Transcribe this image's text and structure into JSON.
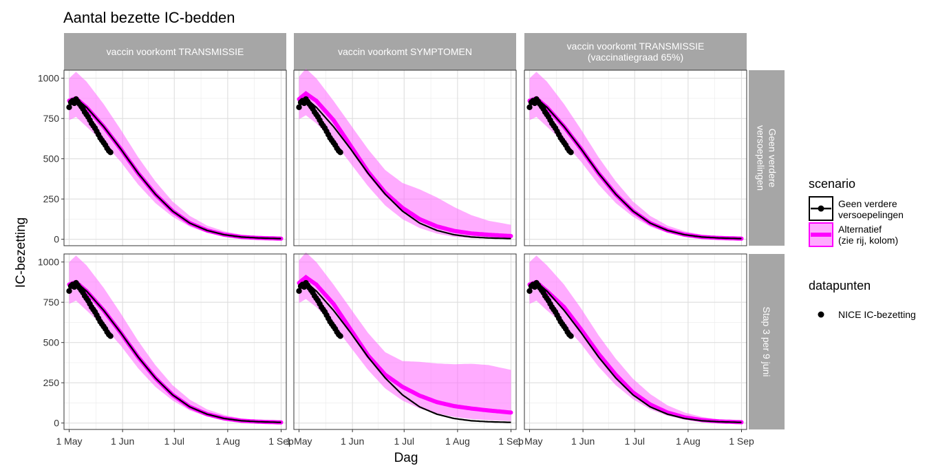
{
  "chart_data": {
    "type": "area",
    "title": "Aantal bezette IC-bedden",
    "xlabel": "Dag",
    "ylabel": "IC-bezetting",
    "x_ticks": [
      "1 May",
      "1 Jun",
      "1 Jul",
      "1 Aug",
      "1 Sep"
    ],
    "y_ticks": [
      "0",
      "250",
      "500",
      "750",
      "1000"
    ],
    "ylim": [
      -40,
      1050
    ],
    "xlim_days": [
      -3,
      126
    ],
    "grid": true,
    "columns": [
      "vaccin voorkomt TRANSMISSIE",
      "vaccin voorkomt SYMPTOMEN",
      "vaccin voorkomt TRANSMISSIE\n(vaccinatiegraad 65%)"
    ],
    "rows": [
      "Geen verdere versoepelingen",
      "Stap 3 per 9 juni"
    ],
    "x": [
      0,
      4,
      10,
      20,
      30,
      40,
      50,
      60,
      70,
      80,
      90,
      100,
      110,
      123
    ],
    "baseline": [
      860,
      875,
      820,
      700,
      560,
      410,
      280,
      175,
      100,
      55,
      28,
      14,
      8,
      4
    ],
    "alternatives": [
      [
        {
          "mean": [
            860,
            875,
            820,
            700,
            560,
            410,
            280,
            175,
            100,
            55,
            28,
            14,
            8,
            4
          ],
          "lo": [
            740,
            760,
            700,
            600,
            480,
            340,
            225,
            140,
            78,
            40,
            20,
            10,
            6,
            3
          ],
          "hi": [
            1000,
            1040,
            980,
            840,
            680,
            510,
            360,
            235,
            145,
            85,
            50,
            28,
            18,
            12
          ]
        },
        {
          "mean": [
            860,
            875,
            820,
            700,
            560,
            410,
            280,
            175,
            100,
            55,
            28,
            14,
            8,
            4
          ],
          "lo": [
            740,
            760,
            700,
            600,
            480,
            340,
            225,
            140,
            78,
            40,
            20,
            10,
            6,
            3
          ],
          "hi": [
            1000,
            1040,
            980,
            840,
            680,
            510,
            360,
            235,
            145,
            85,
            50,
            28,
            18,
            12
          ]
        }
      ],
      [
        {
          "mean": [
            870,
            905,
            860,
            740,
            580,
            420,
            290,
            195,
            125,
            80,
            52,
            36,
            28,
            20
          ],
          "lo": [
            745,
            770,
            720,
            610,
            470,
            330,
            210,
            125,
            70,
            35,
            15,
            8,
            5,
            3
          ],
          "hi": [
            1010,
            1060,
            1000,
            860,
            710,
            560,
            430,
            350,
            310,
            260,
            200,
            150,
            115,
            90
          ]
        },
        {
          "mean": [
            870,
            905,
            860,
            740,
            580,
            420,
            300,
            225,
            170,
            130,
            105,
            90,
            78,
            65
          ],
          "lo": [
            745,
            770,
            720,
            610,
            470,
            330,
            215,
            140,
            90,
            60,
            38,
            25,
            18,
            12
          ],
          "hi": [
            1010,
            1060,
            1000,
            860,
            710,
            560,
            440,
            385,
            380,
            370,
            365,
            368,
            360,
            330
          ]
        }
      ],
      [
        {
          "mean": [
            860,
            875,
            820,
            700,
            560,
            410,
            280,
            175,
            100,
            55,
            28,
            14,
            8,
            4
          ],
          "lo": [
            740,
            760,
            700,
            600,
            480,
            340,
            225,
            140,
            78,
            40,
            20,
            10,
            6,
            3
          ],
          "hi": [
            1000,
            1040,
            980,
            840,
            680,
            510,
            360,
            235,
            145,
            85,
            50,
            28,
            18,
            12
          ]
        },
        {
          "mean": [
            860,
            875,
            820,
            720,
            580,
            430,
            300,
            190,
            115,
            65,
            35,
            18,
            10,
            5
          ],
          "lo": [
            740,
            760,
            700,
            610,
            490,
            350,
            235,
            148,
            85,
            45,
            22,
            11,
            6,
            3
          ],
          "hi": [
            1000,
            1040,
            980,
            860,
            710,
            545,
            400,
            275,
            180,
            110,
            65,
            38,
            22,
            14
          ]
        }
      ]
    ],
    "points": {
      "x": [
        0,
        1,
        2,
        3,
        4,
        5,
        6,
        7,
        8,
        9,
        10,
        11,
        12,
        13,
        14,
        15,
        16,
        17,
        18,
        19,
        20,
        21,
        22,
        23,
        24
      ],
      "y": [
        820,
        850,
        860,
        845,
        870,
        855,
        840,
        825,
        810,
        790,
        775,
        760,
        740,
        720,
        705,
        690,
        670,
        650,
        630,
        615,
        600,
        585,
        565,
        550,
        540
      ]
    },
    "legend": {
      "scenario_title": "scenario",
      "scenario_items": [
        "Geen verdere\nversoepelingen",
        "Alternatief\n(zie rij, kolom)"
      ],
      "points_title": "datapunten",
      "points_item": "NICE IC-bezetting",
      "placement": "right"
    },
    "colors": {
      "baseline": "#000000",
      "alternative": "#ff00ff",
      "ribbon": "#ff66ff",
      "strip": "#a6a6a6",
      "grid": "#ebebeb",
      "panel_border": "#333333"
    }
  }
}
